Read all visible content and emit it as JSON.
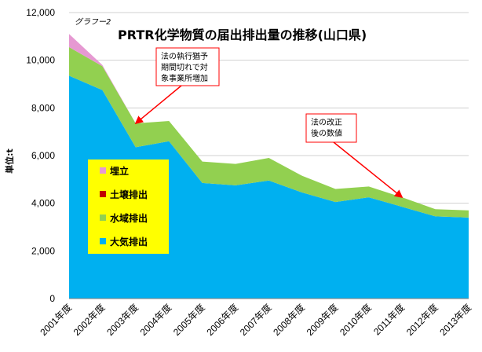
{
  "chart_data": {
    "type": "area",
    "stacked": true,
    "subtitle": "グラフー2",
    "title": "PRTR化学物質の届出排出量の推移(山口県)",
    "ylabel": "単位:t",
    "xlabel": "",
    "ylim": [
      0,
      12000
    ],
    "yticks": [
      "0",
      "2,000",
      "4,000",
      "6,000",
      "8,000",
      "10,000",
      "12,000"
    ],
    "grid": true,
    "legend_position": "left-middle",
    "categories": [
      "2001年度",
      "2002年度",
      "2003年度",
      "2004年度",
      "2005年度",
      "2006年度",
      "2007年度",
      "2008年度",
      "2009年度",
      "2010年度",
      "2011年度",
      "2012年度",
      "2013年度"
    ],
    "series": [
      {
        "name": "大気排出",
        "color": "#00B0F0",
        "values": [
          9350,
          8750,
          6350,
          6600,
          4850,
          4750,
          4950,
          4450,
          4050,
          4250,
          3850,
          3450,
          3400
        ]
      },
      {
        "name": "水域排出",
        "color": "#92D050",
        "values": [
          1200,
          1000,
          1000,
          850,
          900,
          900,
          950,
          700,
          550,
          450,
          400,
          300,
          300
        ]
      },
      {
        "name": "土壌排出",
        "color": "#C00000",
        "values": [
          0,
          0,
          0,
          0,
          0,
          0,
          0,
          0,
          0,
          0,
          0,
          0,
          0
        ]
      },
      {
        "name": "埋立",
        "color": "#E699D2",
        "values": [
          550,
          50,
          0,
          0,
          0,
          0,
          0,
          0,
          0,
          0,
          0,
          0,
          0
        ]
      }
    ],
    "legend_order": [
      "埋立",
      "土壌排出",
      "水域排出",
      "大気排出"
    ],
    "annotations": [
      {
        "lines": [
          "法の執行猶予",
          "期間切れで対",
          "象事業所増加"
        ],
        "points_to": "2003年度"
      },
      {
        "lines": [
          "法の改正",
          "後の数値"
        ],
        "points_to": "2011年度"
      }
    ]
  }
}
